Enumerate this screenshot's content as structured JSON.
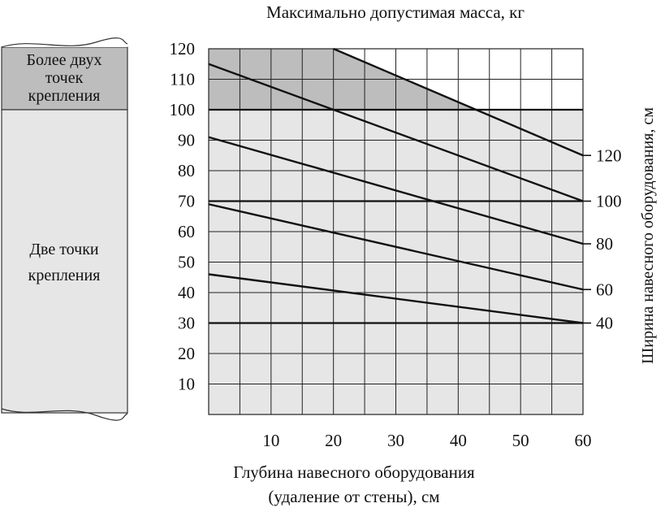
{
  "chart_data": {
    "type": "line",
    "title": "Максимально допустимая масса, кг",
    "xlabel": [
      "Глубина навесного оборудования",
      "(удаление от стены), см"
    ],
    "ylabel_right": "Ширина навесного оборудования, см",
    "xlim": [
      0,
      60
    ],
    "ylim": [
      0,
      120
    ],
    "x_ticks": [
      10,
      20,
      30,
      40,
      50,
      60
    ],
    "y_ticks": [
      10,
      20,
      30,
      40,
      50,
      60,
      70,
      80,
      90,
      100,
      110,
      120
    ],
    "grid": true,
    "regions": [
      {
        "label": "Более двух точек крепления",
        "label_lines": [
          "Более двух",
          "точек",
          "крепления"
        ],
        "y_range": [
          100,
          120
        ],
        "color": "#bdbdbd"
      },
      {
        "label": "Две точки крепления",
        "label_lines": [
          "Две точки",
          "крепления"
        ],
        "y_range": [
          0,
          100
        ],
        "color": "#e6e6e6"
      }
    ],
    "series": [
      {
        "name": "40",
        "x": [
          0,
          60
        ],
        "y": [
          46,
          30
        ]
      },
      {
        "name": "60",
        "x": [
          0,
          60
        ],
        "y": [
          69,
          41
        ]
      },
      {
        "name": "80",
        "x": [
          0,
          60
        ],
        "y": [
          91,
          56
        ]
      },
      {
        "name": "100",
        "x": [
          0,
          60
        ],
        "y": [
          115,
          70
        ]
      },
      {
        "name": "120",
        "x": [
          20,
          60
        ],
        "y": [
          120,
          85
        ]
      }
    ],
    "reference_lines": [
      30,
      70,
      100
    ]
  }
}
